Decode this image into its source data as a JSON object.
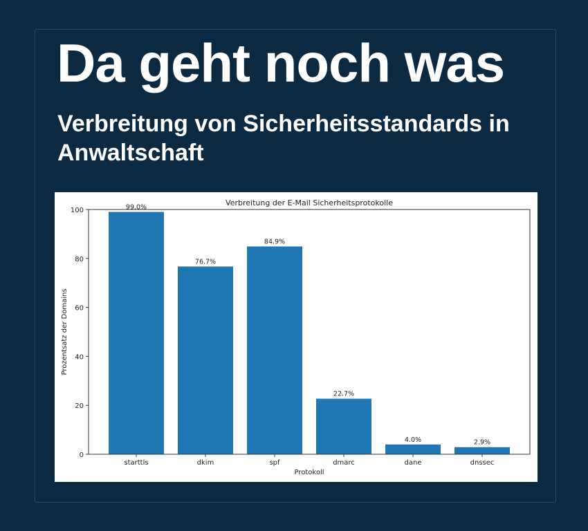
{
  "header": {
    "headline": "Da geht noch was",
    "subtitle": "Verbreitung von Sicherheitsstandards in Anwaltschaft"
  },
  "colors": {
    "background": "#0c2942",
    "bar": "#1f77b4"
  },
  "chart_data": {
    "type": "bar",
    "title": "Verbreitung der E-Mail Sicherheitsprotokolle",
    "xlabel": "Protokoll",
    "ylabel": "Prozentsatz der Domains",
    "categories": [
      "starttls",
      "dkim",
      "spf",
      "dmarc",
      "dane",
      "dnssec"
    ],
    "values": [
      99.0,
      76.7,
      84.9,
      22.7,
      4.0,
      2.9
    ],
    "data_labels": [
      "99.0%",
      "76.7%",
      "84.9%",
      "22.7%",
      "4.0%",
      "2.9%"
    ],
    "ylim": [
      0,
      100
    ],
    "yticks": [
      0,
      20,
      40,
      60,
      80,
      100
    ],
    "grid": false
  }
}
